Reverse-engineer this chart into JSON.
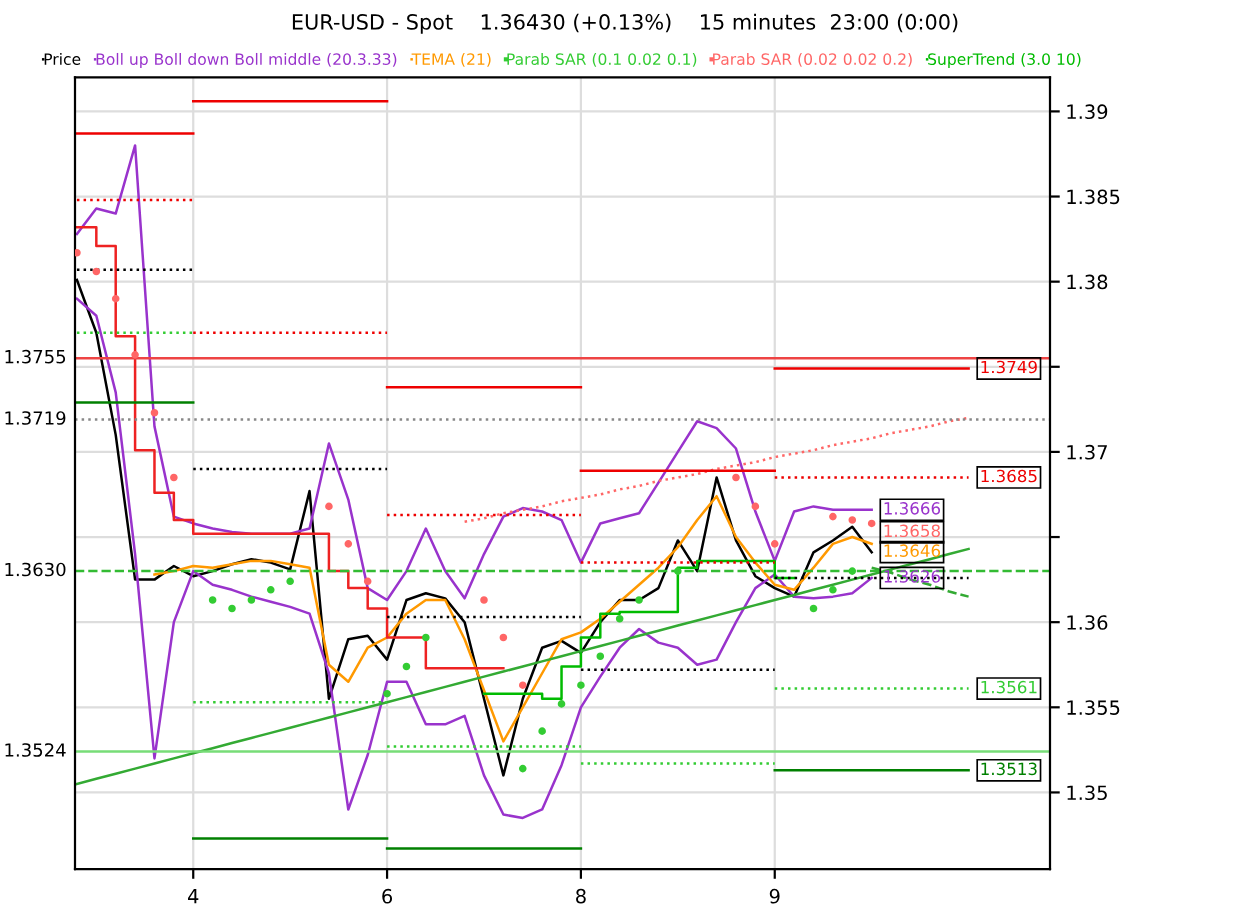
{
  "chart_data": {
    "type": "line",
    "title": "EUR-USD - Spot    1.36430 (+0.13%)    15 minutes  23:00 (0:00)",
    "categories": [
      null,
      null,
      null,
      null,
      null,
      null,
      "4",
      null,
      null,
      null,
      null,
      null,
      null,
      null,
      null,
      null,
      "6",
      null,
      null,
      null,
      null,
      null,
      null,
      null,
      null,
      null,
      "8",
      null,
      null,
      null,
      null,
      null,
      null,
      null,
      null,
      null,
      "9",
      null,
      null,
      null,
      null,
      null,
      null,
      null,
      null,
      null,
      null
    ],
    "ylim": [
      1.3455,
      1.392
    ],
    "yticks": [
      1.35,
      1.355,
      1.36,
      {
        "value": 1.365,
        "label": null
      },
      1.37,
      {
        "value": 1.375,
        "label": null
      },
      1.38,
      1.385,
      1.39
    ],
    "grid": true,
    "legend": "top",
    "series": [
      {
        "name": "Price",
        "color": "#000000",
        "values": [
          1.3801,
          1.377,
          1.371,
          1.3625,
          1.3625,
          1.3633,
          1.3627,
          1.363,
          1.3634,
          1.3637,
          1.3635,
          1.3631,
          1.3677,
          1.3555,
          1.359,
          1.3592,
          1.3578,
          1.3613,
          1.3617,
          1.3614,
          1.36,
          1.3555,
          1.351,
          1.3555,
          1.3585,
          1.3589,
          1.3582,
          1.36,
          1.3613,
          1.3613,
          1.362,
          1.3648,
          1.363,
          1.3685,
          1.3648,
          1.3627,
          1.362,
          1.3615,
          1.3641,
          1.3648,
          1.3656,
          1.3641,
          null,
          null,
          null,
          null,
          null
        ]
      },
      {
        "name": "Boll up Boll down Boll middle (20.3.33)",
        "color": "#9933cc",
        "values": [
          1.3828,
          1.3843,
          1.384,
          1.388,
          1.3715,
          1.3662,
          1.3658,
          1.3655,
          1.3653,
          1.3652,
          1.3652,
          1.3652,
          1.3655,
          1.3705,
          1.3672,
          1.362,
          1.3613,
          1.363,
          1.3655,
          1.363,
          1.3614,
          1.364,
          1.3662,
          1.3667,
          1.3665,
          1.366,
          1.3635,
          1.3658,
          1.3661,
          1.3664,
          1.3682,
          1.37,
          1.3718,
          1.3714,
          1.3702,
          1.3665,
          1.3636,
          1.3665,
          1.3668,
          1.3666,
          1.3666,
          1.3666,
          null,
          null,
          null,
          null,
          null
        ],
        "value_labels": [
          null,
          null,
          null,
          null,
          null,
          null,
          null,
          null,
          null,
          null,
          null,
          null,
          null,
          null,
          null,
          null,
          null,
          null,
          null,
          null,
          null,
          null,
          null,
          null,
          null,
          null,
          null,
          null,
          null,
          null,
          null,
          null,
          null,
          null,
          null,
          null,
          null,
          null,
          null,
          null,
          null,
          "1.3666",
          null,
          null,
          null,
          null,
          null
        ]
      },
      {
        "color": "#9933cc",
        "values": [
          1.379,
          1.378,
          1.3735,
          1.364,
          1.352,
          1.36,
          1.363,
          1.3622,
          1.3619,
          1.3615,
          1.3612,
          1.3609,
          1.3605,
          1.357,
          1.349,
          1.3522,
          1.3565,
          1.3565,
          1.354,
          1.354,
          1.3545,
          1.351,
          1.3487,
          1.3485,
          1.349,
          1.3516,
          1.355,
          1.3568,
          1.3585,
          1.3596,
          1.3588,
          1.3585,
          1.3575,
          1.3578,
          1.36,
          1.362,
          1.3628,
          1.3615,
          1.3614,
          1.3615,
          1.3617,
          1.3626,
          null,
          null,
          null,
          null,
          null
        ],
        "value_labels": [
          null,
          null,
          null,
          null,
          null,
          null,
          null,
          null,
          null,
          null,
          null,
          null,
          null,
          null,
          null,
          null,
          null,
          null,
          null,
          null,
          null,
          null,
          null,
          null,
          null,
          null,
          null,
          null,
          null,
          null,
          null,
          null,
          null,
          null,
          null,
          null,
          null,
          null,
          null,
          null,
          null,
          "1.3626",
          null,
          null,
          null,
          null,
          null
        ]
      },
      {
        "name": "TEMA (21)",
        "color": "#ff9900",
        "values": [
          null,
          null,
          null,
          null,
          1.3628,
          1.363,
          1.3633,
          1.3632,
          1.3634,
          1.3636,
          1.3636,
          1.3634,
          1.3632,
          1.3575,
          1.3565,
          1.3585,
          1.3591,
          1.3605,
          1.3613,
          1.3613,
          1.359,
          1.356,
          1.353,
          1.355,
          1.357,
          1.359,
          1.3594,
          1.3602,
          1.3612,
          1.3622,
          1.3632,
          1.3644,
          1.366,
          1.3674,
          1.365,
          1.3635,
          1.3622,
          1.3619,
          1.3632,
          1.3646,
          1.365,
          1.3646,
          null,
          null,
          null,
          null,
          null
        ],
        "value_labels": [
          null,
          null,
          null,
          null,
          null,
          null,
          null,
          null,
          null,
          null,
          null,
          null,
          null,
          null,
          null,
          null,
          null,
          null,
          null,
          null,
          null,
          null,
          null,
          null,
          null,
          null,
          null,
          null,
          null,
          null,
          null,
          null,
          null,
          null,
          null,
          null,
          null,
          null,
          null,
          null,
          null,
          "1.3646",
          null,
          null,
          null,
          null,
          null
        ]
      },
      {
        "name": "Parab SAR (0.1 0.02 0.1)",
        "type": "scatter",
        "color": "#33cc33",
        "values": [
          null,
          null,
          null,
          null,
          null,
          null,
          null,
          1.3613,
          1.3608,
          1.3613,
          1.3619,
          1.3624,
          null,
          null,
          null,
          null,
          1.3558,
          1.3574,
          1.3591,
          null,
          null,
          null,
          null,
          1.3514,
          1.3536,
          1.3552,
          1.3563,
          1.358,
          1.3602,
          1.3613,
          null,
          1.363,
          null,
          null,
          null,
          null,
          null,
          null,
          1.3608,
          1.3619,
          1.363,
          null,
          null,
          null,
          null,
          null,
          null
        ]
      },
      {
        "name": "Parab SAR (0.02 0.02 0.2)",
        "type": "scatter",
        "color": "#ff6666",
        "values": [
          1.3817,
          1.3806,
          1.379,
          1.3757,
          1.3723,
          1.3685,
          null,
          null,
          null,
          null,
          null,
          null,
          null,
          1.3668,
          1.3646,
          1.3624,
          null,
          null,
          null,
          null,
          null,
          1.3613,
          1.3591,
          1.3563,
          null,
          null,
          null,
          null,
          null,
          null,
          null,
          null,
          null,
          null,
          1.3685,
          1.3668,
          1.3646,
          null,
          null,
          1.3662,
          1.366,
          1.3658,
          null,
          null,
          null,
          null,
          null
        ],
        "value_labels": [
          null,
          null,
          null,
          null,
          null,
          null,
          null,
          null,
          null,
          null,
          null,
          null,
          null,
          null,
          null,
          null,
          null,
          null,
          null,
          null,
          null,
          null,
          null,
          null,
          null,
          null,
          null,
          null,
          null,
          null,
          null,
          null,
          null,
          null,
          null,
          null,
          null,
          null,
          null,
          null,
          null,
          "1.3658",
          null,
          null,
          null,
          null,
          null
        ]
      },
      {
        "name": "SuperTrend (3.0 10)",
        "type": "step",
        "color": "#00bb00",
        "values": [
          null,
          null,
          null,
          null,
          null,
          null,
          null,
          null,
          null,
          null,
          null,
          null,
          null,
          null,
          null,
          null,
          null,
          null,
          null,
          null,
          null,
          1.3558,
          1.3558,
          1.3558,
          1.3555,
          1.3574,
          1.3591,
          1.3605,
          1.3606,
          1.3606,
          1.3606,
          1.3632,
          1.3636,
          1.3636,
          1.3636,
          1.3636,
          1.3626,
          1.3626,
          null,
          null,
          null,
          null,
          null,
          null,
          null,
          null,
          null
        ]
      },
      {
        "type": "step",
        "color": "#ee2222",
        "values": [
          1.3832,
          1.3821,
          1.3768,
          1.3701,
          1.3676,
          1.366,
          1.3652,
          1.3652,
          1.3652,
          1.3652,
          1.3652,
          1.3652,
          1.3652,
          1.363,
          1.362,
          1.3608,
          1.3591,
          1.3591,
          1.3573,
          1.3573,
          1.3573,
          1.3573,
          1.3573,
          null,
          null,
          null,
          null,
          null,
          null,
          null,
          null,
          null,
          null,
          null,
          null,
          null,
          null,
          null,
          null,
          null,
          null,
          null,
          null,
          null,
          null,
          null,
          null
        ]
      },
      {
        "color": "#33aa33",
        "values": [
          1.3505,
          1.3508,
          1.3511,
          1.3514,
          1.3517,
          1.352,
          1.3523,
          1.3526,
          1.3529,
          1.3532,
          1.3535,
          1.3538,
          1.3541,
          1.3544,
          1.3547,
          1.355,
          1.3553,
          1.3556,
          1.3559,
          1.3562,
          1.3565,
          1.3568,
          1.3571,
          1.3574,
          1.3577,
          1.358,
          1.3583,
          1.3586,
          1.3589,
          1.3592,
          1.3595,
          1.3598,
          1.3601,
          1.3604,
          1.3607,
          1.361,
          1.3613,
          1.3616,
          1.3619,
          1.3622,
          1.3625,
          1.3628,
          1.3631,
          1.3634,
          1.3637,
          1.364,
          1.3643
        ]
      },
      {
        "color": "#ff6666",
        "line_style": "dotted",
        "values": [
          null,
          null,
          null,
          null,
          null,
          null,
          null,
          null,
          null,
          null,
          null,
          null,
          null,
          null,
          null,
          null,
          null,
          null,
          null,
          null,
          1.3659,
          1.3661,
          1.3664,
          1.3666,
          1.3668,
          1.3671,
          1.3673,
          1.3675,
          1.3678,
          1.368,
          1.3683,
          1.3685,
          1.3687,
          1.369,
          1.3692,
          1.3694,
          1.3697,
          1.3699,
          1.3701,
          1.3704,
          1.3706,
          1.3708,
          1.3711,
          1.3713,
          1.3715,
          1.3718,
          1.372
        ]
      },
      {
        "color": "#33aa33",
        "line_style": "dashed",
        "values": [
          null,
          null,
          null,
          null,
          null,
          null,
          null,
          null,
          null,
          null,
          null,
          null,
          null,
          null,
          null,
          null,
          null,
          null,
          null,
          null,
          null,
          null,
          null,
          null,
          null,
          null,
          null,
          null,
          null,
          null,
          null,
          null,
          null,
          null,
          null,
          null,
          null,
          null,
          null,
          null,
          null,
          1.3632,
          1.3629,
          1.3625,
          1.3622,
          1.3618,
          1.3615
        ]
      },
      {
        "color": "#ee0000",
        "values": [
          1.3887,
          1.3887,
          1.3887,
          1.3887,
          1.3887,
          1.3887,
          1.3887,
          null,
          null,
          null,
          null,
          null,
          null,
          null,
          null,
          null,
          null,
          null,
          null,
          null,
          null,
          null,
          null,
          null,
          null,
          null,
          null,
          null,
          null,
          null,
          null,
          null,
          null,
          null,
          null,
          null,
          null,
          null,
          null,
          null,
          null,
          null,
          null,
          null,
          null,
          null,
          null
        ]
      },
      {
        "color": "#ee0000",
        "line_style": "dotted",
        "values": [
          1.3848,
          1.3848,
          1.3848,
          1.3848,
          1.3848,
          1.3848,
          1.3848,
          null,
          null,
          null,
          null,
          null,
          null,
          null,
          null,
          null,
          null,
          null,
          null,
          null,
          null,
          null,
          null,
          null,
          null,
          null,
          null,
          null,
          null,
          null,
          null,
          null,
          null,
          null,
          null,
          null,
          null,
          null,
          null,
          null,
          null,
          null,
          null,
          null,
          null,
          null,
          null
        ]
      },
      {
        "color": "#000000",
        "line_style": "dotted",
        "values": [
          1.3807,
          1.3807,
          1.3807,
          1.3807,
          1.3807,
          1.3807,
          1.3807,
          null,
          null,
          null,
          null,
          null,
          null,
          null,
          null,
          null,
          null,
          null,
          null,
          null,
          null,
          null,
          null,
          null,
          null,
          null,
          null,
          null,
          null,
          null,
          null,
          null,
          null,
          null,
          null,
          null,
          null,
          null,
          null,
          null,
          null,
          null,
          null,
          null,
          null,
          null,
          null
        ]
      },
      {
        "color": "#33cc33",
        "line_style": "dotted",
        "values": [
          1.377,
          1.377,
          1.377,
          1.377,
          1.377,
          1.377,
          1.377,
          null,
          null,
          null,
          null,
          null,
          null,
          null,
          null,
          null,
          null,
          null,
          null,
          null,
          null,
          null,
          null,
          null,
          null,
          null,
          null,
          null,
          null,
          null,
          null,
          null,
          null,
          null,
          null,
          null,
          null,
          null,
          null,
          null,
          null,
          null,
          null,
          null,
          null,
          null,
          null
        ]
      },
      {
        "color": "#008000",
        "values": [
          1.3729,
          1.3729,
          1.3729,
          1.3729,
          1.3729,
          1.3729,
          1.3729,
          null,
          null,
          null,
          null,
          null,
          null,
          null,
          null,
          null,
          null,
          null,
          null,
          null,
          null,
          null,
          null,
          null,
          null,
          null,
          null,
          null,
          null,
          null,
          null,
          null,
          null,
          null,
          null,
          null,
          null,
          null,
          null,
          null,
          null,
          null,
          null,
          null,
          null,
          null,
          null
        ]
      },
      {
        "color": "#ee0000",
        "values": [
          null,
          null,
          null,
          null,
          null,
          null,
          1.3906,
          1.3906,
          1.3906,
          1.3906,
          1.3906,
          1.3906,
          1.3906,
          1.3906,
          1.3906,
          1.3906,
          1.3906,
          null,
          null,
          null,
          null,
          null,
          null,
          null,
          null,
          null,
          null,
          null,
          null,
          null,
          null,
          null,
          null,
          null,
          null,
          null,
          null,
          null,
          null,
          null,
          null,
          null,
          null,
          null,
          null,
          null,
          null
        ]
      },
      {
        "color": "#ee0000",
        "line_style": "dotted",
        "values": [
          null,
          null,
          null,
          null,
          null,
          null,
          1.377,
          1.377,
          1.377,
          1.377,
          1.377,
          1.377,
          1.377,
          1.377,
          1.377,
          1.377,
          1.377,
          null,
          null,
          null,
          null,
          null,
          null,
          null,
          null,
          null,
          null,
          null,
          null,
          null,
          null,
          null,
          null,
          null,
          null,
          null,
          null,
          null,
          null,
          null,
          null,
          null,
          null,
          null,
          null,
          null,
          null
        ]
      },
      {
        "color": "#000000",
        "line_style": "dotted",
        "values": [
          null,
          null,
          null,
          null,
          null,
          null,
          1.369,
          1.369,
          1.369,
          1.369,
          1.369,
          1.369,
          1.369,
          1.369,
          1.369,
          1.369,
          1.369,
          null,
          null,
          null,
          null,
          null,
          null,
          null,
          null,
          null,
          null,
          null,
          null,
          null,
          null,
          null,
          null,
          null,
          null,
          null,
          null,
          null,
          null,
          null,
          null,
          null,
          null,
          null,
          null,
          null,
          null
        ]
      },
      {
        "color": "#33cc33",
        "line_style": "dotted",
        "values": [
          null,
          null,
          null,
          null,
          null,
          null,
          1.3553,
          1.3553,
          1.3553,
          1.3553,
          1.3553,
          1.3553,
          1.3553,
          1.3553,
          1.3553,
          1.3553,
          1.3553,
          null,
          null,
          null,
          null,
          null,
          null,
          null,
          null,
          null,
          null,
          null,
          null,
          null,
          null,
          null,
          null,
          null,
          null,
          null,
          null,
          null,
          null,
          null,
          null,
          null,
          null,
          null,
          null,
          null,
          null
        ]
      },
      {
        "color": "#008000",
        "values": [
          null,
          null,
          null,
          null,
          null,
          null,
          1.3473,
          1.3473,
          1.3473,
          1.3473,
          1.3473,
          1.3473,
          1.3473,
          1.3473,
          1.3473,
          1.3473,
          1.3473,
          null,
          null,
          null,
          null,
          null,
          null,
          null,
          null,
          null,
          null,
          null,
          null,
          null,
          null,
          null,
          null,
          null,
          null,
          null,
          null,
          null,
          null,
          null,
          null,
          null,
          null,
          null,
          null,
          null,
          null
        ]
      },
      {
        "color": "#ee0000",
        "values": [
          null,
          null,
          null,
          null,
          null,
          null,
          null,
          null,
          null,
          null,
          null,
          null,
          null,
          null,
          null,
          null,
          1.3738,
          1.3738,
          1.3738,
          1.3738,
          1.3738,
          1.3738,
          1.3738,
          1.3738,
          1.3738,
          1.3738,
          1.3738,
          null,
          null,
          null,
          null,
          null,
          null,
          null,
          null,
          null,
          null,
          null,
          null,
          null,
          null,
          null,
          null,
          null,
          null,
          null,
          null
        ]
      },
      {
        "color": "#ee0000",
        "line_style": "dotted",
        "values": [
          null,
          null,
          null,
          null,
          null,
          null,
          null,
          null,
          null,
          null,
          null,
          null,
          null,
          null,
          null,
          null,
          1.3663,
          1.3663,
          1.3663,
          1.3663,
          1.3663,
          1.3663,
          1.3663,
          1.3663,
          1.3663,
          1.3663,
          1.3663,
          null,
          null,
          null,
          null,
          null,
          null,
          null,
          null,
          null,
          null,
          null,
          null,
          null,
          null,
          null,
          null,
          null,
          null,
          null,
          null
        ]
      },
      {
        "color": "#000000",
        "line_style": "dotted",
        "values": [
          null,
          null,
          null,
          null,
          null,
          null,
          null,
          null,
          null,
          null,
          null,
          null,
          null,
          null,
          null,
          null,
          1.3603,
          1.3603,
          1.3603,
          1.3603,
          1.3603,
          1.3603,
          1.3603,
          1.3603,
          1.3603,
          1.3603,
          1.3603,
          null,
          null,
          null,
          null,
          null,
          null,
          null,
          null,
          null,
          null,
          null,
          null,
          null,
          null,
          null,
          null,
          null,
          null,
          null,
          null
        ]
      },
      {
        "color": "#33cc33",
        "line_style": "dotted",
        "values": [
          null,
          null,
          null,
          null,
          null,
          null,
          null,
          null,
          null,
          null,
          null,
          null,
          null,
          null,
          null,
          null,
          1.3527,
          1.3527,
          1.3527,
          1.3527,
          1.3527,
          1.3527,
          1.3527,
          1.3527,
          1.3527,
          1.3527,
          1.3527,
          null,
          null,
          null,
          null,
          null,
          null,
          null,
          null,
          null,
          null,
          null,
          null,
          null,
          null,
          null,
          null,
          null,
          null,
          null,
          null
        ]
      },
      {
        "color": "#008000",
        "values": [
          null,
          null,
          null,
          null,
          null,
          null,
          null,
          null,
          null,
          null,
          null,
          null,
          null,
          null,
          null,
          null,
          1.3467,
          1.3467,
          1.3467,
          1.3467,
          1.3467,
          1.3467,
          1.3467,
          1.3467,
          1.3467,
          1.3467,
          1.3467,
          null,
          null,
          null,
          null,
          null,
          null,
          null,
          null,
          null,
          null,
          null,
          null,
          null,
          null,
          null,
          null,
          null,
          null,
          null,
          null
        ]
      },
      {
        "color": "#ee0000",
        "values": [
          null,
          null,
          null,
          null,
          null,
          null,
          null,
          null,
          null,
          null,
          null,
          null,
          null,
          null,
          null,
          null,
          null,
          null,
          null,
          null,
          null,
          null,
          null,
          null,
          null,
          null,
          1.3689,
          1.3689,
          1.3689,
          1.3689,
          1.3689,
          1.3689,
          1.3689,
          1.3689,
          1.3689,
          1.3689,
          1.3689,
          null,
          null,
          null,
          null,
          null,
          null,
          null,
          null,
          null,
          null
        ]
      },
      {
        "color": "#ee0000",
        "line_style": "dotted",
        "values": [
          null,
          null,
          null,
          null,
          null,
          null,
          null,
          null,
          null,
          null,
          null,
          null,
          null,
          null,
          null,
          null,
          null,
          null,
          null,
          null,
          null,
          null,
          null,
          null,
          null,
          null,
          1.3635,
          1.3635,
          1.3635,
          1.3635,
          1.3635,
          1.3635,
          1.3635,
          1.3635,
          1.3635,
          1.3635,
          1.3635,
          null,
          null,
          null,
          null,
          null,
          null,
          null,
          null,
          null,
          null
        ]
      },
      {
        "color": "#000000",
        "line_style": "dotted",
        "values": [
          null,
          null,
          null,
          null,
          null,
          null,
          null,
          null,
          null,
          null,
          null,
          null,
          null,
          null,
          null,
          null,
          null,
          null,
          null,
          null,
          null,
          null,
          null,
          null,
          null,
          null,
          1.3572,
          1.3572,
          1.3572,
          1.3572,
          1.3572,
          1.3572,
          1.3572,
          1.3572,
          1.3572,
          1.3572,
          1.3572,
          null,
          null,
          null,
          null,
          null,
          null,
          null,
          null,
          null,
          null
        ]
      },
      {
        "color": "#33cc33",
        "line_style": "dotted",
        "values": [
          null,
          null,
          null,
          null,
          null,
          null,
          null,
          null,
          null,
          null,
          null,
          null,
          null,
          null,
          null,
          null,
          null,
          null,
          null,
          null,
          null,
          null,
          null,
          null,
          null,
          null,
          1.3517,
          1.3517,
          1.3517,
          1.3517,
          1.3517,
          1.3517,
          1.3517,
          1.3517,
          1.3517,
          1.3517,
          1.3517,
          null,
          null,
          null,
          null,
          null,
          null,
          null,
          null,
          null,
          null
        ]
      },
      {
        "color": "#ee0000",
        "values": [
          null,
          null,
          null,
          null,
          null,
          null,
          null,
          null,
          null,
          null,
          null,
          null,
          null,
          null,
          null,
          null,
          null,
          null,
          null,
          null,
          null,
          null,
          null,
          null,
          null,
          null,
          null,
          null,
          null,
          null,
          null,
          null,
          null,
          null,
          null,
          null,
          1.3749,
          1.3749,
          1.3749,
          1.3749,
          1.3749,
          1.3749,
          1.3749,
          1.3749,
          1.3749,
          1.3749,
          1.3749
        ],
        "value_labels": [
          null,
          null,
          null,
          null,
          null,
          null,
          null,
          null,
          null,
          null,
          null,
          null,
          null,
          null,
          null,
          null,
          null,
          null,
          null,
          null,
          null,
          null,
          null,
          null,
          null,
          null,
          null,
          null,
          null,
          null,
          null,
          null,
          null,
          null,
          null,
          null,
          null,
          null,
          null,
          null,
          null,
          null,
          null,
          null,
          null,
          null,
          "1.3749"
        ]
      },
      {
        "color": "#ee0000",
        "line_style": "dotted",
        "values": [
          null,
          null,
          null,
          null,
          null,
          null,
          null,
          null,
          null,
          null,
          null,
          null,
          null,
          null,
          null,
          null,
          null,
          null,
          null,
          null,
          null,
          null,
          null,
          null,
          null,
          null,
          null,
          null,
          null,
          null,
          null,
          null,
          null,
          null,
          null,
          null,
          1.3685,
          1.3685,
          1.3685,
          1.3685,
          1.3685,
          1.3685,
          1.3685,
          1.3685,
          1.3685,
          1.3685,
          1.3685
        ],
        "value_labels": [
          null,
          null,
          null,
          null,
          null,
          null,
          null,
          null,
          null,
          null,
          null,
          null,
          null,
          null,
          null,
          null,
          null,
          null,
          null,
          null,
          null,
          null,
          null,
          null,
          null,
          null,
          null,
          null,
          null,
          null,
          null,
          null,
          null,
          null,
          null,
          null,
          null,
          null,
          null,
          null,
          null,
          null,
          null,
          null,
          null,
          null,
          "1.3685"
        ]
      },
      {
        "color": "#000000",
        "line_style": "dotted",
        "values": [
          null,
          null,
          null,
          null,
          null,
          null,
          null,
          null,
          null,
          null,
          null,
          null,
          null,
          null,
          null,
          null,
          null,
          null,
          null,
          null,
          null,
          null,
          null,
          null,
          null,
          null,
          null,
          null,
          null,
          null,
          null,
          null,
          null,
          null,
          null,
          null,
          1.3626,
          1.3626,
          1.3626,
          1.3626,
          1.3626,
          1.3626,
          1.3626,
          1.3626,
          1.3626,
          1.3626,
          1.3626
        ]
      },
      {
        "color": "#33cc33",
        "line_style": "dotted",
        "values": [
          null,
          null,
          null,
          null,
          null,
          null,
          null,
          null,
          null,
          null,
          null,
          null,
          null,
          null,
          null,
          null,
          null,
          null,
          null,
          null,
          null,
          null,
          null,
          null,
          null,
          null,
          null,
          null,
          null,
          null,
          null,
          null,
          null,
          null,
          null,
          null,
          1.3561,
          1.3561,
          1.3561,
          1.3561,
          1.3561,
          1.3561,
          1.3561,
          1.3561,
          1.3561,
          1.3561,
          1.3561
        ],
        "value_labels": [
          null,
          null,
          null,
          null,
          null,
          null,
          null,
          null,
          null,
          null,
          null,
          null,
          null,
          null,
          null,
          null,
          null,
          null,
          null,
          null,
          null,
          null,
          null,
          null,
          null,
          null,
          null,
          null,
          null,
          null,
          null,
          null,
          null,
          null,
          null,
          null,
          null,
          null,
          null,
          null,
          null,
          null,
          null,
          null,
          null,
          null,
          "1.3561"
        ]
      },
      {
        "color": "#008000",
        "values": [
          null,
          null,
          null,
          null,
          null,
          null,
          null,
          null,
          null,
          null,
          null,
          null,
          null,
          null,
          null,
          null,
          null,
          null,
          null,
          null,
          null,
          null,
          null,
          null,
          null,
          null,
          null,
          null,
          null,
          null,
          null,
          null,
          null,
          null,
          null,
          null,
          1.3513,
          1.3513,
          1.3513,
          1.3513,
          1.3513,
          1.3513,
          1.3513,
          1.3513,
          1.3513,
          1.3513,
          1.3513
        ],
        "value_labels": [
          null,
          null,
          null,
          null,
          null,
          null,
          null,
          null,
          null,
          null,
          null,
          null,
          null,
          null,
          null,
          null,
          null,
          null,
          null,
          null,
          null,
          null,
          null,
          null,
          null,
          null,
          null,
          null,
          null,
          null,
          null,
          null,
          null,
          null,
          null,
          null,
          null,
          null,
          null,
          null,
          null,
          null,
          null,
          null,
          null,
          null,
          "1.3513"
        ]
      }
    ],
    "ref_lines": [
      {
        "axis": "y",
        "value": 1.3755,
        "label": "1.3755",
        "color": "#ee4444",
        "line_style": "solid"
      },
      {
        "axis": "y",
        "value": 1.3719,
        "label": "1.3719",
        "color": "#888888",
        "line_style": "dotted"
      },
      {
        "axis": "y",
        "value": 1.363,
        "label": "1.3630",
        "color": "#33bb33",
        "line_style": "dashed"
      },
      {
        "axis": "y",
        "value": 1.3524,
        "label": "1.3524",
        "color": "#77dd77",
        "line_style": "solid"
      }
    ]
  }
}
